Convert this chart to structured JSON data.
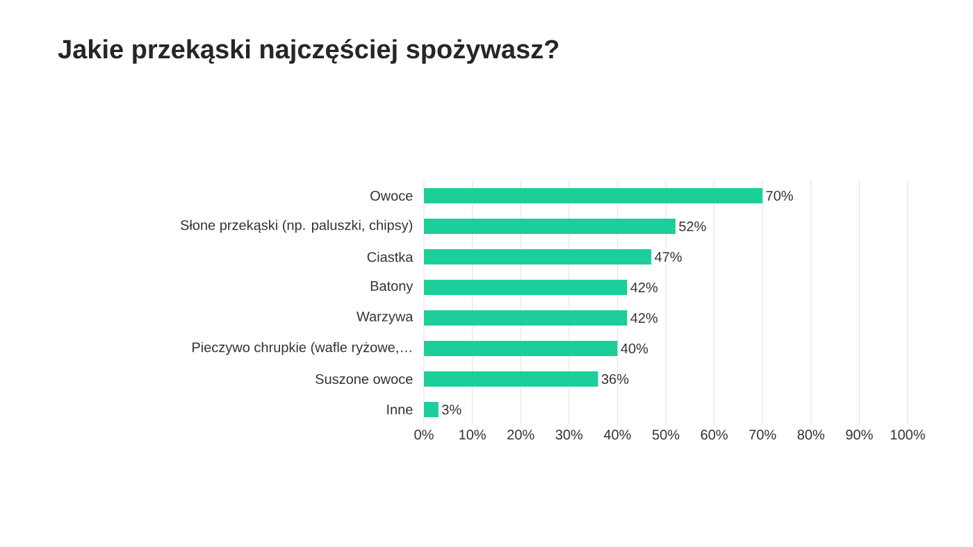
{
  "chart_data": {
    "type": "bar",
    "orientation": "horizontal",
    "title": "Jakie przekąski najczęściej spożywasz?",
    "categories": [
      "Owoce",
      "Słone przekąski (np. paluszki, chipsy)",
      "Ciastka",
      "Batony",
      "Warzywa",
      "Pieczywo chrupkie (wafle ryżowe,…",
      "Suszone owoce",
      "Inne"
    ],
    "values": [
      70,
      52,
      47,
      42,
      42,
      40,
      36,
      3
    ],
    "value_labels": [
      "70%",
      "52%",
      "47%",
      "42%",
      "42%",
      "40%",
      "36%",
      "3%"
    ],
    "color": "#1ccf9a",
    "xlim": [
      0,
      100
    ],
    "xticks": [
      {
        "value": 0,
        "label": "0%"
      },
      {
        "value": 10,
        "label": "10%"
      },
      {
        "value": 20,
        "label": "20%"
      },
      {
        "value": 30,
        "label": "30%"
      },
      {
        "value": 40,
        "label": "40%"
      },
      {
        "value": 50,
        "label": "50%"
      },
      {
        "value": 60,
        "label": "60%"
      },
      {
        "value": 70,
        "label": "70%"
      },
      {
        "value": 80,
        "label": "80%"
      },
      {
        "value": 90,
        "label": "90%"
      },
      {
        "value": 100,
        "label": "100%"
      }
    ],
    "grid": "x"
  }
}
